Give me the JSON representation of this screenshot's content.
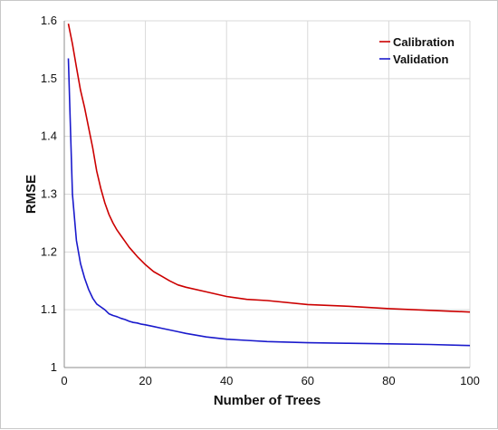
{
  "chart_data": {
    "type": "line",
    "xlabel": "Number of Trees",
    "ylabel": "RMSE",
    "xlim": [
      0,
      100
    ],
    "ylim": [
      1,
      1.6
    ],
    "x_ticks": [
      "0",
      "20",
      "40",
      "60",
      "80",
      "100"
    ],
    "y_ticks": [
      "1",
      "1.1",
      "1.2",
      "1.3",
      "1.4",
      "1.5",
      "1.6"
    ],
    "grid": true,
    "legend_position": "top-right",
    "series": [
      {
        "name": "Calibration",
        "color": "#cc0000",
        "x": [
          1,
          2,
          3,
          4,
          5,
          6,
          7,
          8,
          9,
          10,
          11,
          12,
          13,
          14,
          15,
          16,
          17,
          18,
          19,
          20,
          22,
          24,
          26,
          28,
          30,
          35,
          40,
          45,
          50,
          60,
          70,
          80,
          90,
          100
        ],
        "y": [
          1.595,
          1.56,
          1.52,
          1.48,
          1.45,
          1.415,
          1.38,
          1.34,
          1.31,
          1.285,
          1.265,
          1.25,
          1.238,
          1.228,
          1.218,
          1.208,
          1.2,
          1.192,
          1.185,
          1.178,
          1.166,
          1.158,
          1.15,
          1.143,
          1.139,
          1.131,
          1.123,
          1.118,
          1.116,
          1.109,
          1.106,
          1.102,
          1.099,
          1.096
        ]
      },
      {
        "name": "Validation",
        "color": "#1a1acc",
        "x": [
          1,
          2,
          3,
          4,
          5,
          6,
          7,
          8,
          9,
          10,
          11,
          12,
          13,
          14,
          15,
          16,
          17,
          18,
          19,
          20,
          22,
          24,
          26,
          28,
          30,
          35,
          40,
          45,
          50,
          60,
          70,
          80,
          90,
          100
        ],
        "y": [
          1.535,
          1.3,
          1.22,
          1.18,
          1.155,
          1.135,
          1.12,
          1.11,
          1.105,
          1.1,
          1.093,
          1.09,
          1.088,
          1.085,
          1.083,
          1.08,
          1.078,
          1.077,
          1.075,
          1.074,
          1.071,
          1.068,
          1.065,
          1.062,
          1.059,
          1.053,
          1.049,
          1.047,
          1.045,
          1.043,
          1.042,
          1.041,
          1.04,
          1.038
        ]
      }
    ]
  }
}
